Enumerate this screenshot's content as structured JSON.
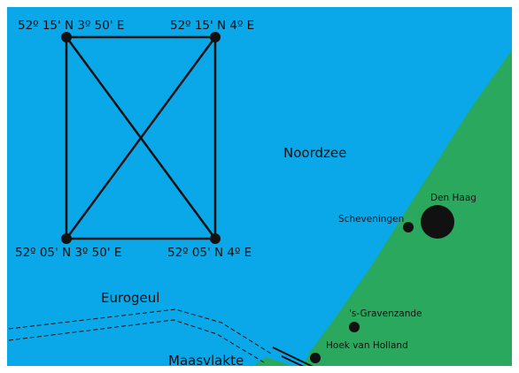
{
  "colors": {
    "sea": "#0aa8e8",
    "land": "#2aa95e",
    "line": "#111111",
    "frame": "#ffffff"
  },
  "corners": {
    "nw": "52º 15' N 3º 50' E",
    "ne": "52º 15' N 4º E",
    "sw": "52º 05' N 3º 50' E",
    "se": "52º 05' N 4º E"
  },
  "labels": {
    "sea": "Noordzee",
    "channel": "Eurogeul",
    "maasvlakte": "Maasvlakte"
  },
  "places": {
    "den_haag": "Den Haag",
    "scheveningen": "Scheveningen",
    "gravenzande": "'s-Gravenzande",
    "hoek_van_holland": "Hoek van Holland"
  }
}
